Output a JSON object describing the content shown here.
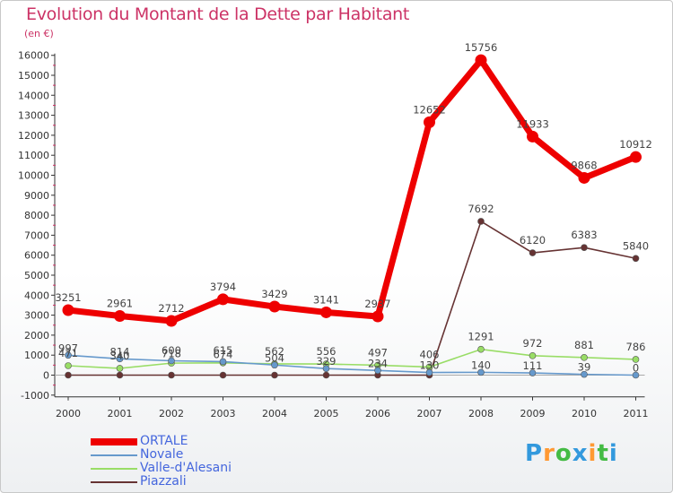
{
  "chart_data": {
    "type": "line",
    "title": "Evolution du Montant de la Dette par Habitant",
    "subtitle": "(en €)",
    "categories": [
      "2000",
      "2001",
      "2002",
      "2003",
      "2004",
      "2005",
      "2006",
      "2007",
      "2008",
      "2009",
      "2010",
      "2011"
    ],
    "ylim": [
      -1000,
      16000
    ],
    "yticks": [
      -1000,
      0,
      1000,
      2000,
      3000,
      4000,
      5000,
      6000,
      7000,
      8000,
      9000,
      10000,
      11000,
      12000,
      13000,
      14000,
      15000,
      16000
    ],
    "grid": false,
    "legend_position": "bottom-left",
    "series": [
      {
        "name": "ORTALE",
        "color": "#ee0000",
        "values": [
          3251,
          2961,
          2712,
          3794,
          3429,
          3141,
          2937,
          12652,
          15756,
          11933,
          9868,
          10912
        ]
      },
      {
        "name": "Novale",
        "color": "#6699cc",
        "values": [
          997,
          814,
          718,
          674,
          504,
          329,
          234,
          130,
          140,
          111,
          39,
          0
        ]
      },
      {
        "name": "Valle-d'Alesani",
        "color": "#99dd66",
        "values": [
          471,
          340,
          600,
          615,
          562,
          556,
          497,
          406,
          1291,
          972,
          881,
          786
        ]
      },
      {
        "name": "Piazzali",
        "color": "#663333",
        "values": [
          0,
          0,
          0,
          0,
          0,
          0,
          0,
          0,
          7692,
          6120,
          6383,
          5840
        ]
      }
    ]
  },
  "brand": "Proxiti"
}
